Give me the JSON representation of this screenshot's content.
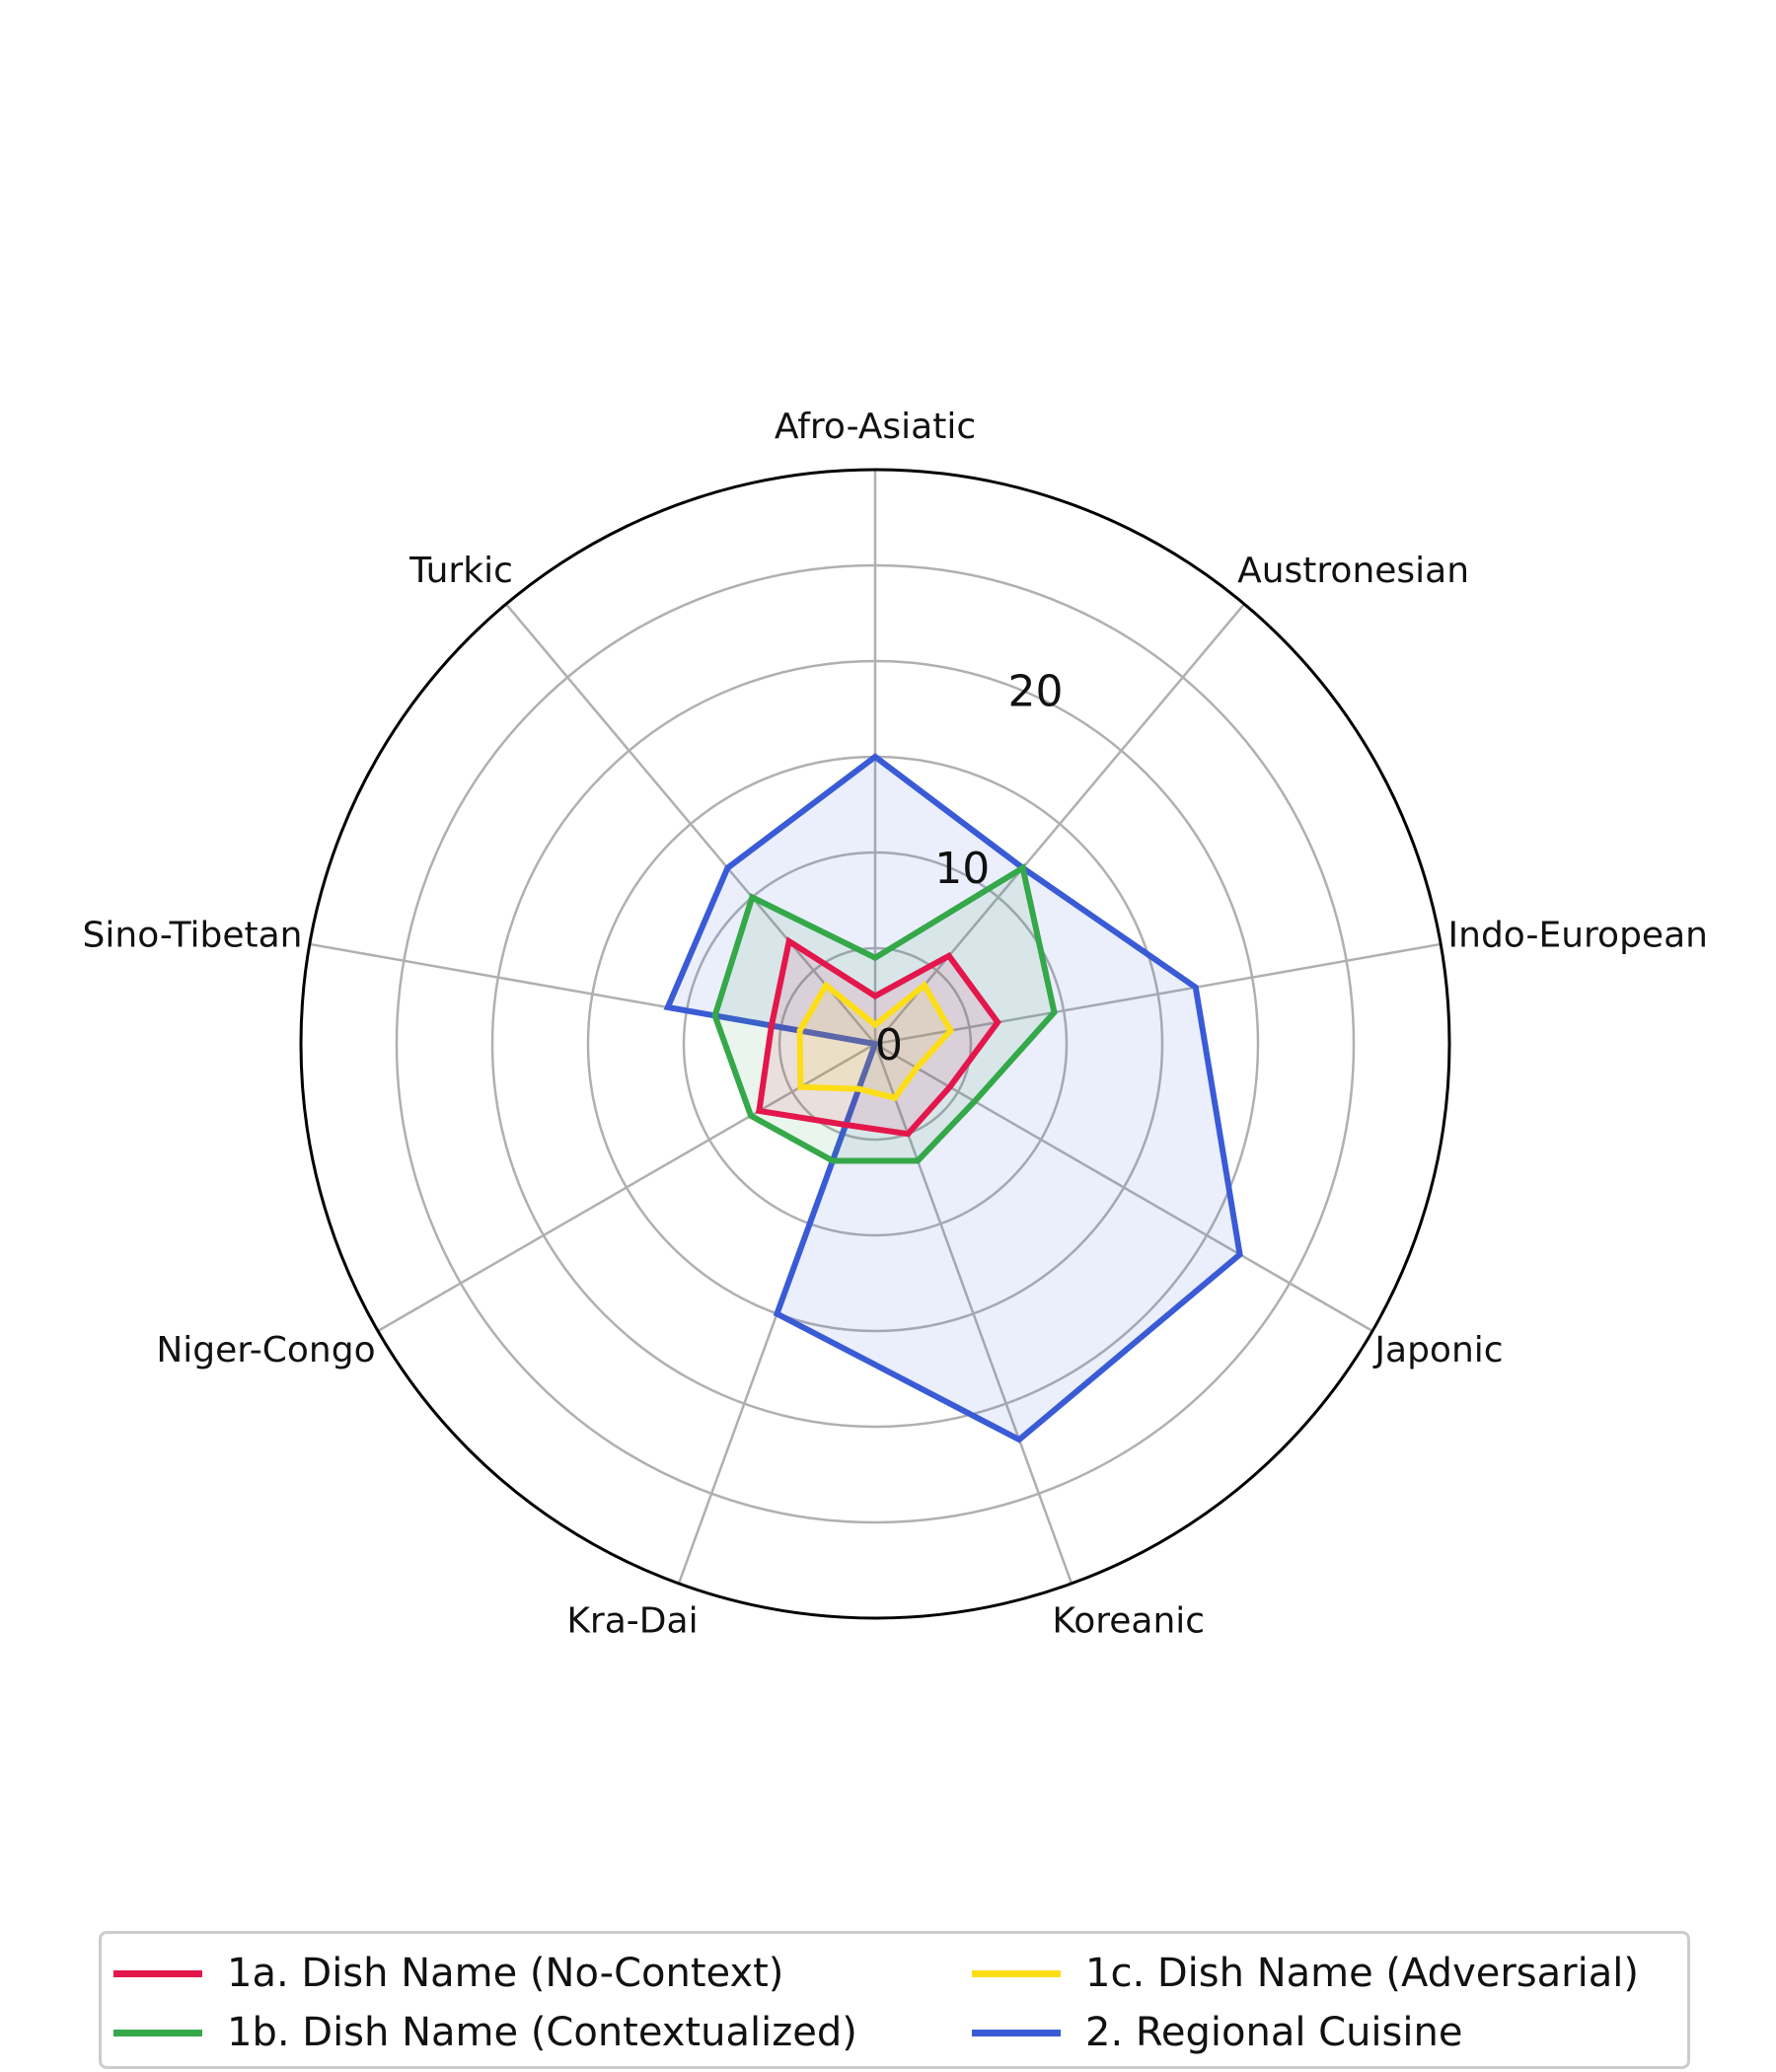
{
  "chart_data": {
    "type": "radar",
    "categories": [
      "Afro-Asiatic",
      "Austronesian",
      "Indo-European",
      "Japonic",
      "Koreanic",
      "Kra-Dai",
      "Niger-Congo",
      "Sino-Tibetan",
      "Turkic"
    ],
    "rmax": 30,
    "rticks": [
      0,
      10,
      20
    ],
    "grid": true,
    "legend_position": "bottom",
    "series": [
      {
        "name": "2. Regional Cuisine",
        "color": "#3a5bd6",
        "fill": true,
        "values": [
          15,
          12,
          17,
          22,
          22,
          15,
          0,
          11,
          12
        ]
      },
      {
        "name": "1b. Dish Name (Contextualized)",
        "color": "#35a84a",
        "fill": true,
        "values": [
          4.5,
          12,
          9.5,
          6,
          6.5,
          6.5,
          7.5,
          8.5,
          10
        ]
      },
      {
        "name": "1a. Dish Name (No-Context)",
        "color": "#e3174b",
        "fill": true,
        "values": [
          2.5,
          6,
          6.5,
          4.5,
          5,
          4.5,
          7,
          5.5,
          7
        ]
      },
      {
        "name": "1c. Dish Name (Adversarial)",
        "color": "#fddd17",
        "fill": true,
        "values": [
          1,
          4,
          4,
          2.5,
          3,
          2.5,
          4.5,
          4,
          4
        ]
      }
    ]
  },
  "legend": {
    "items": [
      {
        "label": "1a. Dish Name (No-Context)",
        "color": "#e3174b"
      },
      {
        "label": "1c. Dish Name (Adversarial)",
        "color": "#fddd17"
      },
      {
        "label": "1b. Dish Name (Contextualized)",
        "color": "#35a84a"
      },
      {
        "label": "2. Regional Cuisine",
        "color": "#3a5bd6"
      }
    ]
  }
}
